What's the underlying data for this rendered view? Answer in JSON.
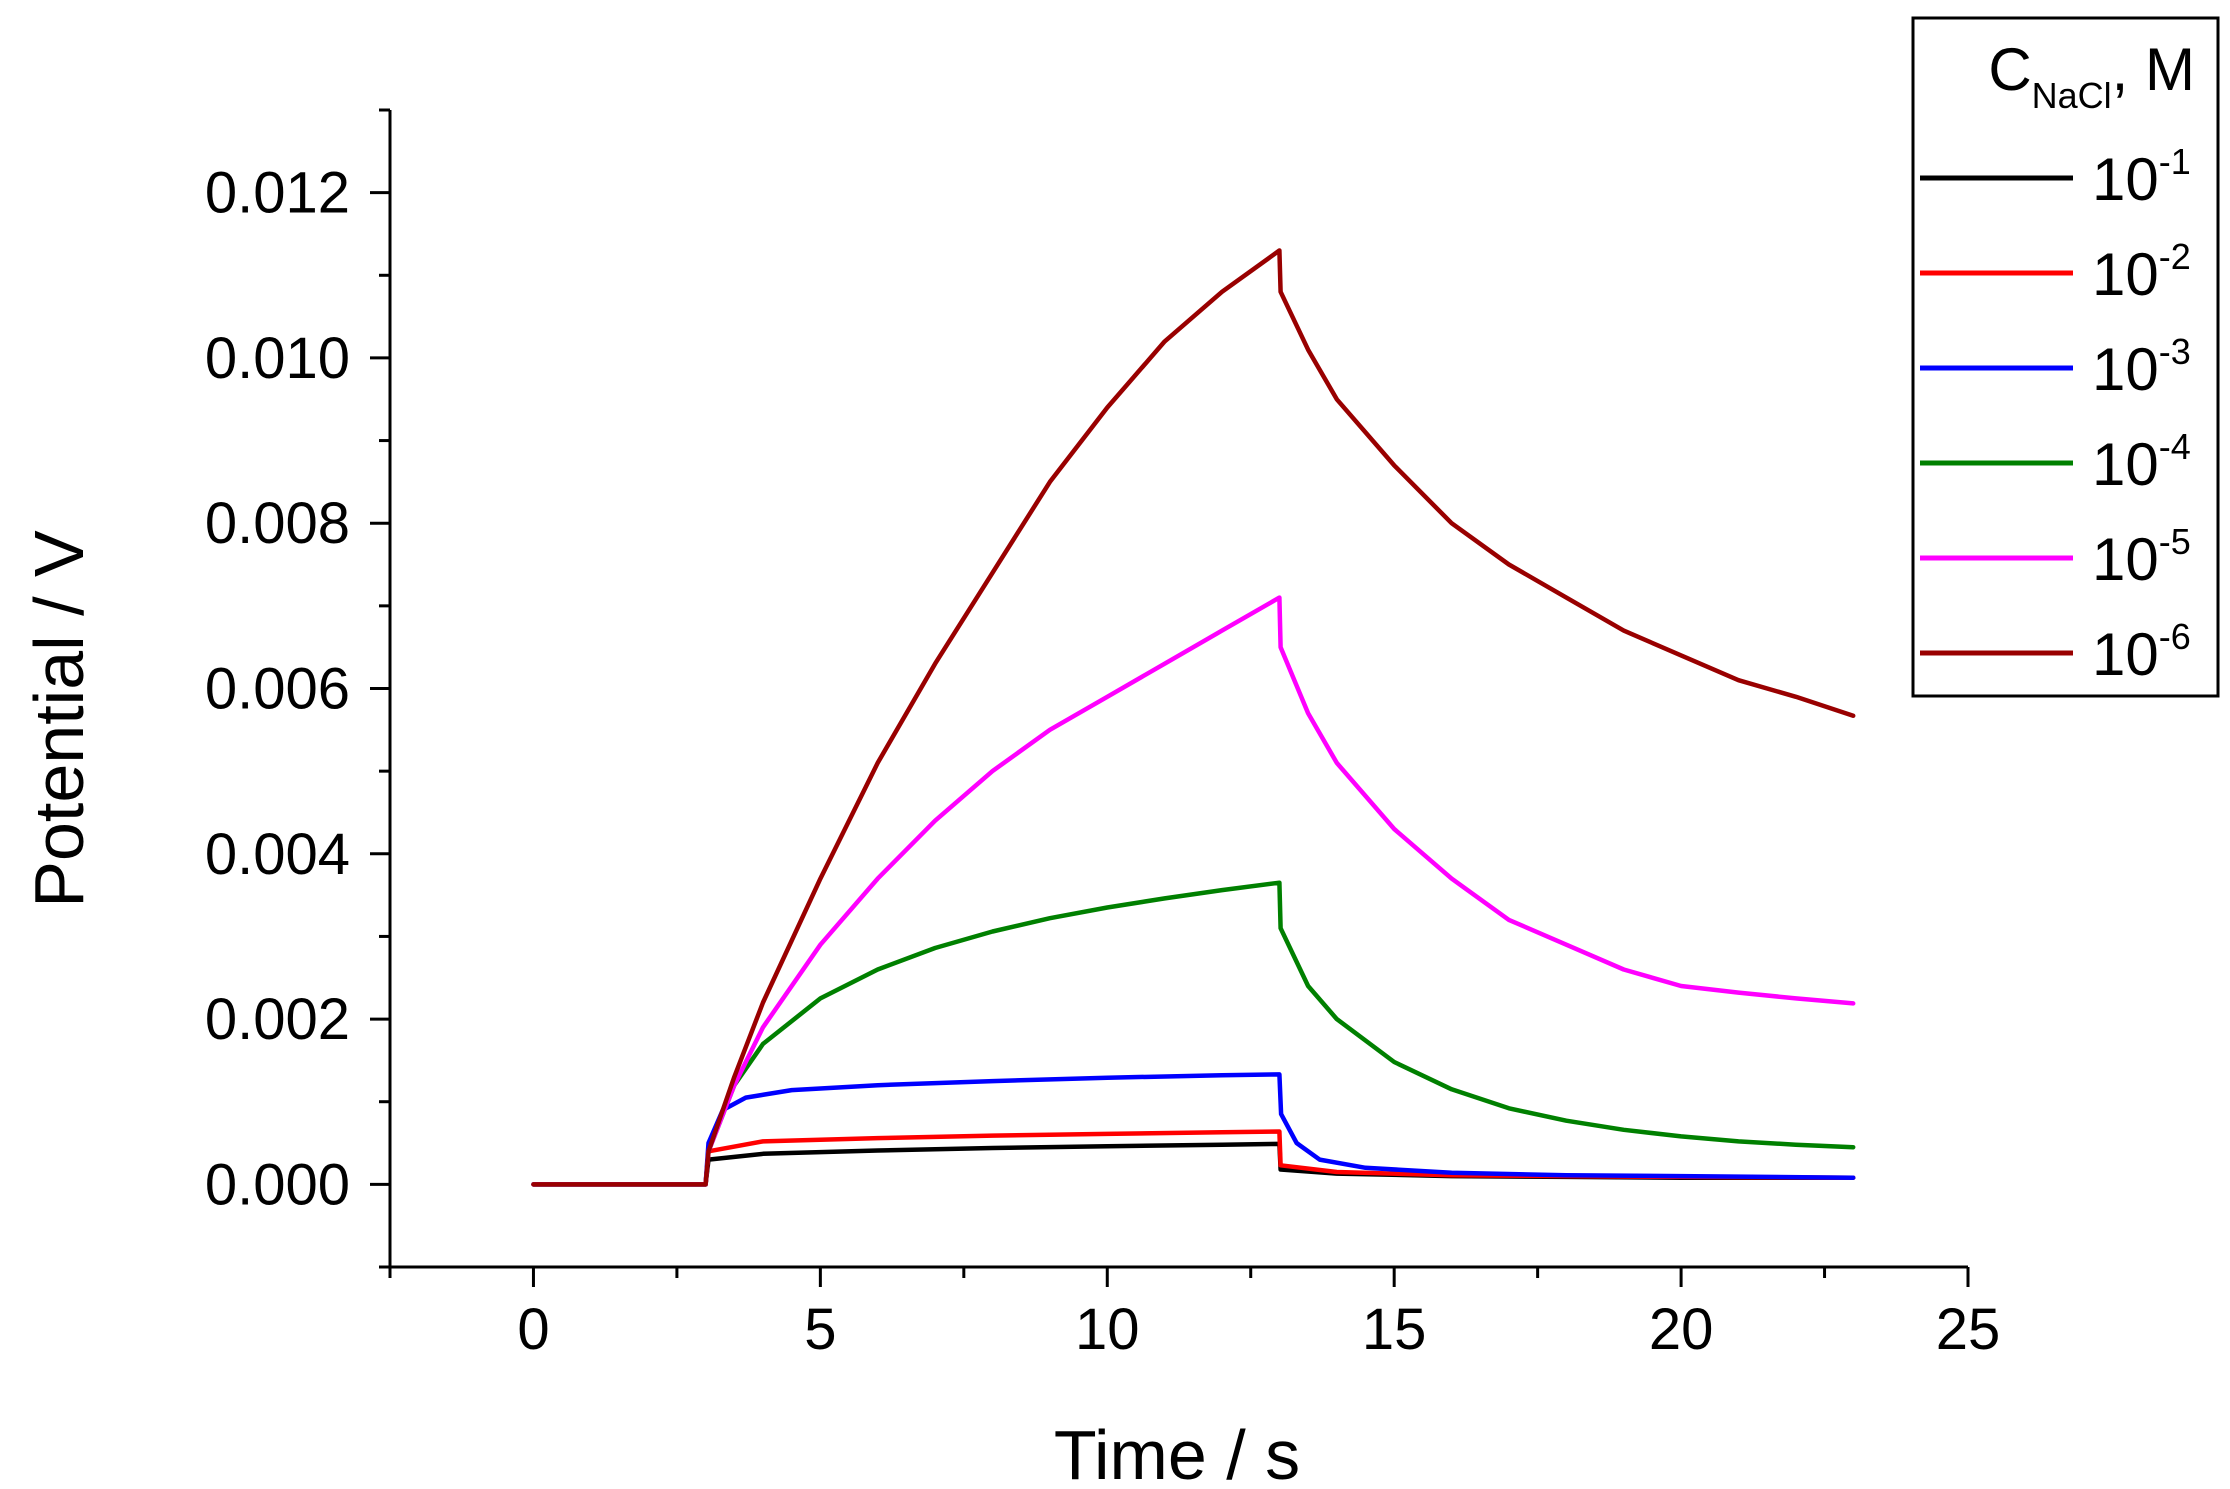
{
  "chart_data": {
    "type": "line",
    "title": "",
    "xlabel": "Time / s",
    "ylabel": "Potential / V",
    "xlim": [
      -2.5,
      25
    ],
    "ylim": [
      -0.001,
      0.013
    ],
    "xticks": [
      0,
      5,
      10,
      15,
      20,
      25
    ],
    "xtick_labels": [
      "0",
      "5",
      "10",
      "15",
      "20",
      "25"
    ],
    "yticks": [
      0.0,
      0.002,
      0.004,
      0.006,
      0.008,
      0.01,
      0.012
    ],
    "ytick_labels": [
      "0.000",
      "0.002",
      "0.004",
      "0.006",
      "0.008",
      "0.010",
      "0.012"
    ],
    "grid": false,
    "legend": {
      "title_main": "C",
      "title_sub": "NaCl",
      "title_suffix": ", M",
      "placement": "top-right outside"
    },
    "series": [
      {
        "name": "10^-1",
        "base": "10",
        "exp": "-1",
        "color": "#000000",
        "x": [
          0,
          2.9,
          3.0,
          3.05,
          4,
          6,
          8,
          10,
          12,
          13.0,
          13.02,
          14,
          16,
          18,
          20,
          23
        ],
        "y": [
          0.0,
          0.0,
          0.0,
          0.0003,
          0.00037,
          0.00041,
          0.00044,
          0.00046,
          0.00048,
          0.00049,
          0.00018,
          0.00013,
          0.0001,
          9e-05,
          8e-05,
          8e-05
        ]
      },
      {
        "name": "10^-2",
        "base": "10",
        "exp": "-2",
        "color": "#ff0000",
        "x": [
          0,
          2.9,
          3.0,
          3.05,
          4,
          6,
          8,
          10,
          12,
          13.0,
          13.02,
          14,
          16,
          18,
          20,
          23
        ],
        "y": [
          0.0,
          0.0,
          0.0,
          0.0004,
          0.00052,
          0.00056,
          0.00059,
          0.00061,
          0.00063,
          0.00064,
          0.00023,
          0.00015,
          0.00011,
          0.0001,
          9e-05,
          8e-05
        ]
      },
      {
        "name": "10^-3",
        "base": "10",
        "exp": "-3",
        "color": "#0000ff",
        "x": [
          0,
          2.9,
          3.0,
          3.05,
          3.3,
          3.7,
          4.5,
          6,
          8,
          10,
          12,
          13.0,
          13.03,
          13.3,
          13.7,
          14.5,
          16,
          18,
          20,
          23
        ],
        "y": [
          0.0,
          0.0,
          0.0,
          0.0005,
          0.0009,
          0.00105,
          0.00114,
          0.0012,
          0.00125,
          0.00129,
          0.00132,
          0.00133,
          0.00085,
          0.0005,
          0.0003,
          0.0002,
          0.00014,
          0.00011,
          0.0001,
          8e-05
        ]
      },
      {
        "name": "10^-4",
        "base": "10",
        "exp": "-4",
        "color": "#008000",
        "x": [
          0,
          2.9,
          3.0,
          3.05,
          3.5,
          4,
          5,
          6,
          7,
          8,
          9,
          10,
          11,
          12,
          13.0,
          13.02,
          13.5,
          14,
          15,
          16,
          17,
          18,
          19,
          20,
          21,
          22,
          23
        ],
        "y": [
          0.0,
          0.0,
          0.0,
          0.0004,
          0.0012,
          0.0017,
          0.00225,
          0.0026,
          0.00286,
          0.00306,
          0.00322,
          0.00335,
          0.00346,
          0.00356,
          0.00365,
          0.0031,
          0.0024,
          0.002,
          0.00148,
          0.00115,
          0.00092,
          0.00077,
          0.00066,
          0.00058,
          0.00052,
          0.00048,
          0.00045
        ]
      },
      {
        "name": "10^-5",
        "base": "10",
        "exp": "-5",
        "color": "#ff00ff",
        "x": [
          0,
          2.9,
          3.0,
          3.05,
          3.5,
          4,
          5,
          6,
          7,
          8,
          9,
          10,
          11,
          12,
          13.0,
          13.02,
          13.5,
          14,
          15,
          16,
          17,
          18,
          19,
          20,
          21,
          22,
          23
        ],
        "y": [
          0.0,
          0.0,
          0.0,
          0.0004,
          0.0012,
          0.0019,
          0.0029,
          0.0037,
          0.0044,
          0.005,
          0.0055,
          0.0059,
          0.0063,
          0.0067,
          0.0071,
          0.0065,
          0.0057,
          0.0051,
          0.0043,
          0.0037,
          0.0032,
          0.0029,
          0.0026,
          0.0024,
          0.00232,
          0.00225,
          0.00219
        ]
      },
      {
        "name": "10^-6",
        "base": "10",
        "exp": "-6",
        "color": "#990000",
        "x": [
          0,
          2.9,
          3.0,
          3.05,
          3.5,
          4,
          5,
          6,
          7,
          8,
          9,
          10,
          11,
          12,
          13.0,
          13.02,
          13.5,
          14,
          15,
          16,
          17,
          18,
          19,
          20,
          21,
          22,
          23
        ],
        "y": [
          0.0,
          0.0,
          0.0,
          0.0004,
          0.0013,
          0.0022,
          0.0037,
          0.0051,
          0.0063,
          0.0074,
          0.0085,
          0.0094,
          0.0102,
          0.0108,
          0.0113,
          0.0108,
          0.0101,
          0.0095,
          0.0087,
          0.008,
          0.0075,
          0.0071,
          0.0067,
          0.0064,
          0.0061,
          0.0059,
          0.00567
        ]
      }
    ]
  }
}
